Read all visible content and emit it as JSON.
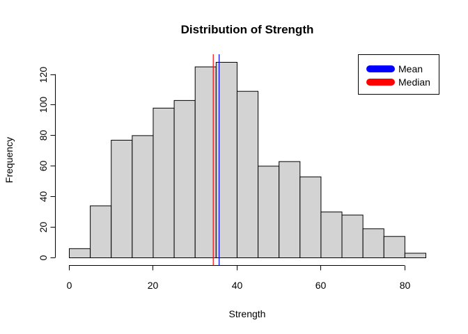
{
  "chart_data": {
    "type": "bar",
    "title": "Distribution of Strength",
    "xlabel": "Strength",
    "ylabel": "Frequency",
    "bin_width": 5,
    "bin_start": 0,
    "values": [
      6,
      34,
      77,
      80,
      98,
      103,
      125,
      128,
      109,
      60,
      63,
      53,
      30,
      28,
      19,
      14,
      3
    ],
    "xlim": [
      0,
      85
    ],
    "ylim": [
      0,
      128
    ],
    "xticks": [
      0,
      20,
      40,
      60,
      80
    ],
    "yticks": [
      0,
      20,
      40,
      60,
      80,
      100,
      120
    ],
    "bar_color": "#d3d3d3",
    "grid": false,
    "lines": [
      {
        "name": "Mean",
        "x": 35.8,
        "color": "#0000ff"
      },
      {
        "name": "Median",
        "x": 34.4,
        "color": "#ff0000"
      }
    ],
    "legend": {
      "placement": "top-right",
      "entries": [
        {
          "label": "Mean",
          "color": "#0000ff"
        },
        {
          "label": "Median",
          "color": "#ff0000"
        }
      ]
    }
  }
}
